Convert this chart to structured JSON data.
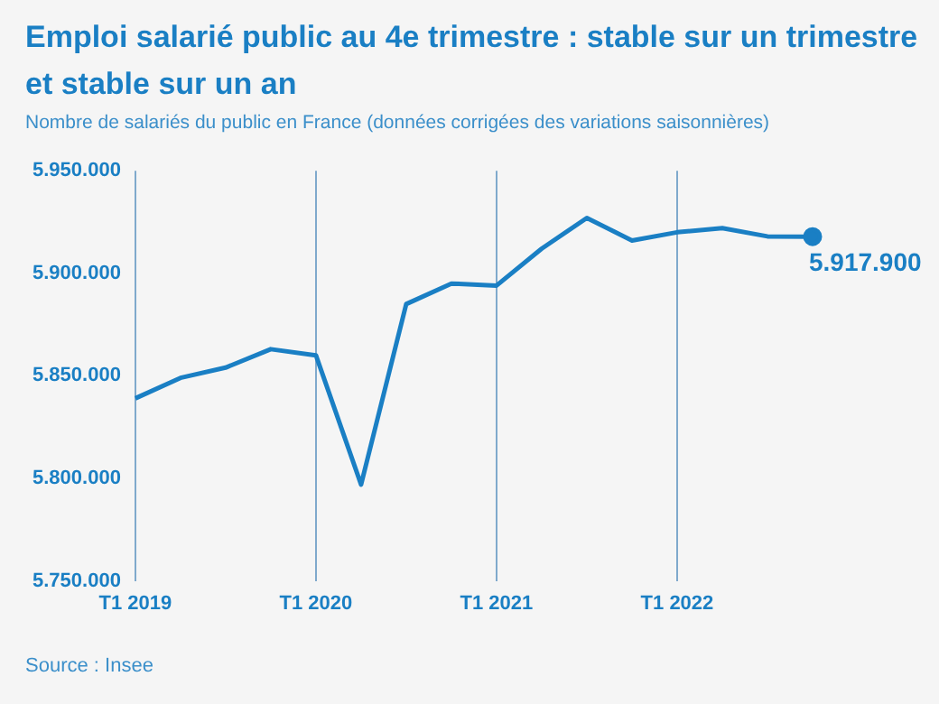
{
  "chart_data": {
    "type": "line",
    "title": "Emploi salarié public au 4e trimestre : stable sur un trimestre et stable sur un an",
    "subtitle": "Nombre de salariés du public en France (données corrigées des variations saisonnières)",
    "categories": [
      "T1 2019",
      null,
      null,
      null,
      "T1 2020",
      null,
      null,
      null,
      "T1 2021",
      null,
      null,
      null,
      "T1 2022",
      null,
      null,
      null
    ],
    "series": [
      {
        "color": "#1a7fc4",
        "values": [
          5839000,
          5849000,
          5854000,
          5863000,
          5860000,
          5797000,
          5885000,
          5895000,
          5894000,
          5912000,
          5927000,
          5916000,
          5920000,
          5922000,
          5918000,
          5917900
        ],
        "value_labels": [
          null,
          null,
          null,
          null,
          null,
          null,
          null,
          null,
          null,
          null,
          null,
          null,
          null,
          null,
          null,
          "5.917.900"
        ]
      }
    ],
    "ylim": [
      5750000,
      5950000
    ],
    "yticks": [
      {
        "value": 5750000,
        "label": "5.750.000"
      },
      {
        "value": 5800000,
        "label": "5.800.000"
      },
      {
        "value": 5850000,
        "label": "5.850.000"
      },
      {
        "value": 5900000,
        "label": "5.900.000"
      },
      {
        "value": 5950000,
        "label": "5.950.000"
      }
    ],
    "grid": "x",
    "legend": false,
    "annotations": [
      "Source : Insee"
    ]
  }
}
